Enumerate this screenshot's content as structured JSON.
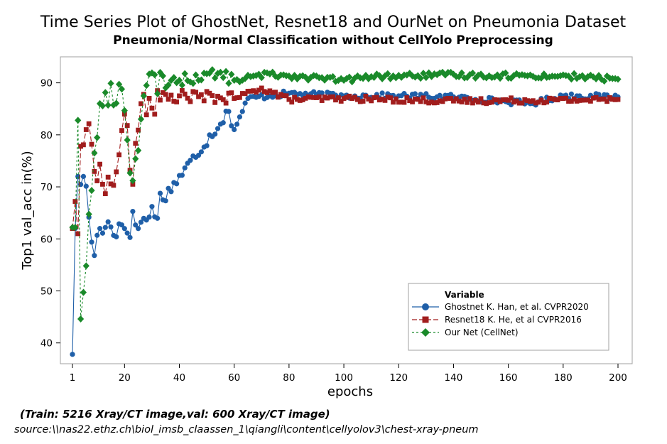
{
  "chart_data": {
    "type": "line",
    "title": "Time Series Plot of GhostNet, Resnet18 and OurNet on Pneumonia Dataset",
    "subtitle": "Pneumonia/Normal Classification without CellYolo Preprocessing",
    "xlabel": "epochs",
    "ylabel": "Top1 val_acc in(%)",
    "xlim": [
      1,
      200
    ],
    "ylim": [
      36,
      95
    ],
    "xticks": [
      1,
      20,
      40,
      60,
      80,
      100,
      120,
      140,
      160,
      180,
      200
    ],
    "yticks": [
      40,
      50,
      60,
      70,
      80,
      90
    ],
    "grid": false,
    "legend": {
      "title": "Variable",
      "position": "bottom-right"
    },
    "series": [
      {
        "name": "Ghostnet K. Han, et al. CVPR2020",
        "color": "#1f5fa8",
        "marker": "circle",
        "line_style": "solid",
        "key_points": [
          {
            "x": 1,
            "y": 37.8
          },
          {
            "x": 2,
            "y": 62.0
          },
          {
            "x": 3,
            "y": 72.0
          },
          {
            "x": 5,
            "y": 72.0
          },
          {
            "x": 9,
            "y": 56.8
          },
          {
            "x": 11,
            "y": 62.0
          },
          {
            "x": 13,
            "y": 62.2
          },
          {
            "x": 15,
            "y": 62.3
          },
          {
            "x": 26,
            "y": 63.2
          },
          {
            "x": 29,
            "y": 64.2
          },
          {
            "x": 58,
            "y": 84.5
          },
          {
            "x": 60,
            "y": 81.0
          },
          {
            "x": 65,
            "y": 87.0
          },
          {
            "x": 80,
            "y": 88.0
          },
          {
            "x": 100,
            "y": 87.5
          },
          {
            "x": 120,
            "y": 87.5
          },
          {
            "x": 140,
            "y": 87.3
          },
          {
            "x": 168,
            "y": 86.0
          },
          {
            "x": 180,
            "y": 87.5
          },
          {
            "x": 200,
            "y": 87.3
          }
        ],
        "plateau": 87.4
      },
      {
        "name": "Resnet18 K. He, et al CVPR2016",
        "color": "#a11d1d",
        "marker": "square",
        "line_style": "dashed",
        "key_points": [
          {
            "x": 1,
            "y": 62.0
          },
          {
            "x": 2,
            "y": 67.2
          },
          {
            "x": 3,
            "y": 61.0
          },
          {
            "x": 4,
            "y": 77.8
          },
          {
            "x": 6,
            "y": 81.0
          },
          {
            "x": 12,
            "y": 70.5
          },
          {
            "x": 16,
            "y": 70.3
          },
          {
            "x": 20,
            "y": 84.0
          },
          {
            "x": 23,
            "y": 70.5
          },
          {
            "x": 26,
            "y": 86.0
          },
          {
            "x": 40,
            "y": 87.5
          },
          {
            "x": 60,
            "y": 87.0
          },
          {
            "x": 70,
            "y": 89.0
          },
          {
            "x": 80,
            "y": 86.8
          },
          {
            "x": 100,
            "y": 87.0
          },
          {
            "x": 140,
            "y": 86.5
          },
          {
            "x": 200,
            "y": 86.8
          }
        ],
        "plateau": 87.0
      },
      {
        "name": "Our Net (CellNet)",
        "color": "#1a8a2a",
        "marker": "diamond",
        "line_style": "dashed",
        "key_points": [
          {
            "x": 1,
            "y": 62.2
          },
          {
            "x": 2,
            "y": 62.2
          },
          {
            "x": 3,
            "y": 82.8
          },
          {
            "x": 4,
            "y": 44.6
          },
          {
            "x": 8,
            "y": 69.3
          },
          {
            "x": 11,
            "y": 86.0
          },
          {
            "x": 19,
            "y": 88.8
          },
          {
            "x": 23,
            "y": 71.2
          },
          {
            "x": 28,
            "y": 89.5
          },
          {
            "x": 40,
            "y": 90.5
          },
          {
            "x": 54,
            "y": 91.8
          },
          {
            "x": 60,
            "y": 90.5
          },
          {
            "x": 73,
            "y": 91.7
          },
          {
            "x": 100,
            "y": 90.5
          },
          {
            "x": 110,
            "y": 91.2
          },
          {
            "x": 137,
            "y": 91.5
          },
          {
            "x": 182,
            "y": 91.3
          },
          {
            "x": 200,
            "y": 90.7
          }
        ],
        "plateau": 90.5
      }
    ]
  },
  "footer": {
    "note": "(Train: 5216 Xray/CT image,val: 600 Xray/CT image)",
    "source": "source:\\\\nas22.ethz.ch\\biol_imsb_claassen_1\\qiangli\\content\\cellyolov3\\chest-xray-pneum"
  }
}
